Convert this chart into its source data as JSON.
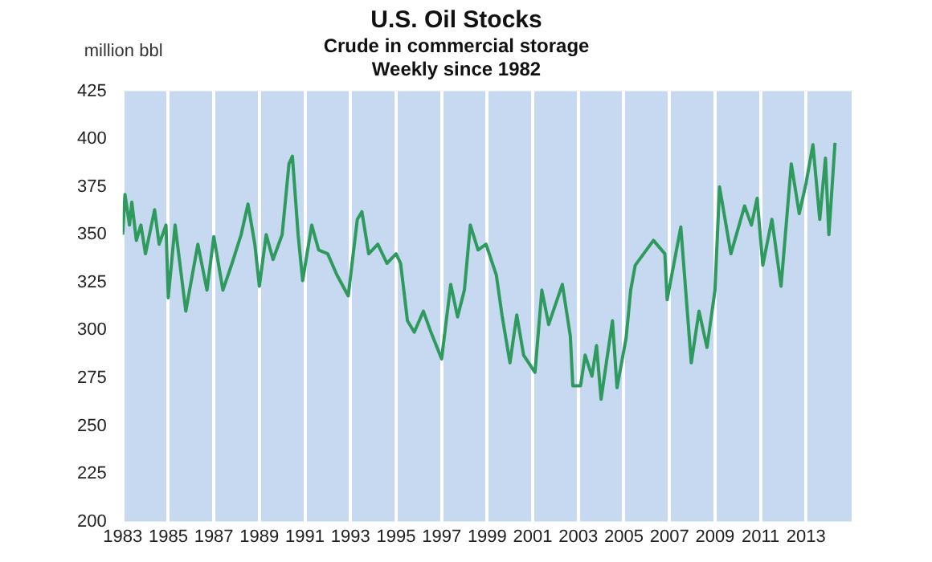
{
  "chart_data": {
    "type": "line",
    "title": "U.S. Oil Stocks",
    "subtitle": "Crude in commercial storage\nWeekly since 1982",
    "ylabel": "million bbl",
    "x": [
      1983.0,
      1983.1,
      1983.3,
      1983.4,
      1983.6,
      1983.8,
      1984.0,
      1984.4,
      1984.6,
      1984.9,
      1985.0,
      1985.3,
      1985.77,
      1986.3,
      1986.7,
      1987.0,
      1987.4,
      1987.8,
      1988.2,
      1988.5,
      1988.8,
      1989.0,
      1989.3,
      1989.6,
      1990.0,
      1990.3,
      1990.45,
      1990.7,
      1990.9,
      1991.3,
      1991.6,
      1992.0,
      1992.4,
      1992.9,
      1993.3,
      1993.5,
      1993.8,
      1994.2,
      1994.6,
      1995.0,
      1995.2,
      1995.5,
      1995.8,
      1996.2,
      1996.5,
      1997.0,
      1997.4,
      1997.7,
      1998.0,
      1998.26,
      1998.6,
      1998.95,
      1999.4,
      1999.65,
      2000.0,
      2000.3,
      2000.6,
      2001.1,
      2001.4,
      2001.7,
      2002.3,
      2002.65,
      2002.76,
      2003.1,
      2003.3,
      2003.6,
      2003.8,
      2004.0,
      2004.5,
      2004.7,
      2005.1,
      2005.3,
      2005.5,
      2006.3,
      2006.8,
      2006.9,
      2007.5,
      2007.96,
      2008.3,
      2008.65,
      2009.0,
      2009.2,
      2009.7,
      2010.3,
      2010.6,
      2010.85,
      2011.1,
      2011.5,
      2011.9,
      2012.35,
      2012.7,
      2013.0,
      2013.3,
      2013.6,
      2013.85,
      2014.0,
      2014.27
    ],
    "series": [
      {
        "color": "#2e9a5e",
        "values": [
          350,
          371,
          355,
          367,
          347,
          355,
          340,
          363,
          345,
          355,
          317,
          355,
          310,
          345,
          321,
          349,
          321,
          335,
          350,
          366,
          345,
          323,
          350,
          337,
          350,
          387,
          391,
          350,
          326,
          355,
          342,
          340,
          329,
          318,
          358,
          362,
          340,
          345,
          335,
          340,
          335,
          305,
          299,
          310,
          300,
          285,
          324,
          307,
          321,
          355,
          342,
          345,
          329,
          308,
          283,
          308,
          287,
          278,
          321,
          303,
          324,
          297,
          271,
          271,
          287,
          276,
          292,
          264,
          305,
          270,
          296,
          321,
          334,
          347,
          340,
          316,
          354,
          283,
          310,
          291,
          321,
          375,
          340,
          365,
          355,
          369,
          334,
          358,
          323,
          387,
          361,
          377,
          397,
          358,
          390,
          350,
          398
        ]
      }
    ],
    "xlim": [
      1983,
      2015
    ],
    "xticks": [
      1983,
      1985,
      1987,
      1989,
      1991,
      1993,
      1995,
      1997,
      1999,
      2001,
      2003,
      2005,
      2007,
      2009,
      2011,
      2013
    ],
    "ylim": [
      200,
      425
    ],
    "yticks": [
      200,
      225,
      250,
      275,
      300,
      325,
      350,
      375,
      400,
      425
    ],
    "grid": "x",
    "legend": false,
    "marker": "none",
    "line_style": "solid"
  }
}
